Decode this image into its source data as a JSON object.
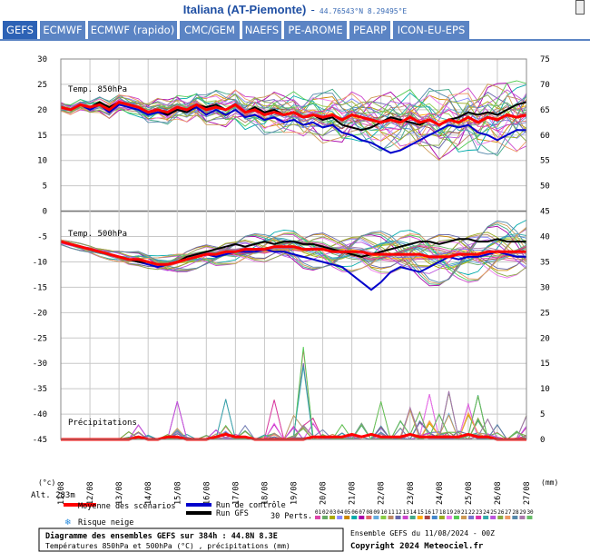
{
  "header": {
    "title": "Italiana (AT-Piemonte)",
    "separator": "-",
    "coords": "44.76543°N 8.29495°E"
  },
  "tabs": [
    {
      "label": "GEFS",
      "active": true
    },
    {
      "label": "ECMWF",
      "active": false
    },
    {
      "label": "ECMWF (rapido)",
      "active": false
    },
    {
      "label": "CMC/GEM",
      "active": false
    },
    {
      "label": "NAEFS",
      "active": false
    },
    {
      "label": "PE-AROME",
      "active": false
    },
    {
      "label": "PEARP",
      "active": false
    },
    {
      "label": "ICON-EU-EPS",
      "active": false
    }
  ],
  "colors": {
    "tab_bg": "#5b84c4",
    "tab_active": "#2d62b5",
    "mean": "#ff0000",
    "control": "#0000cc",
    "gfs": "#000000"
  },
  "chart_data": {
    "type": "line",
    "panel_labels": {
      "t850": "Temp. 850hPa",
      "t500": "Temp. 500hPa",
      "precip": "Précipitations"
    },
    "left_ticks": [
      30,
      25,
      20,
      15,
      10,
      5,
      0,
      -5,
      -10,
      -15,
      -20,
      -25,
      -30,
      -35,
      -40,
      -45
    ],
    "right_ticks": [
      75,
      70,
      65,
      60,
      55,
      50,
      45,
      40,
      35,
      30,
      25,
      20,
      15,
      10,
      5,
      0
    ],
    "left_unit": "(°c)",
    "right_unit": "(mm)",
    "altitude_label": "Alt. 283m",
    "x_labels": [
      "11/08",
      "12/08",
      "13/08",
      "14/08",
      "15/08",
      "16/08",
      "17/08",
      "18/08",
      "19/08",
      "20/08",
      "21/08",
      "22/08",
      "23/08",
      "24/08",
      "25/08",
      "26/08",
      "27/08"
    ],
    "grid": true,
    "members_count": 30,
    "t850_mean": [
      20.5,
      20,
      21,
      20.5,
      21,
      20,
      21.5,
      21,
      20.5,
      19.5,
      20,
      19.5,
      20.5,
      20,
      21,
      20,
      20.5,
      20,
      21,
      19.5,
      20,
      19,
      19.5,
      19,
      19.5,
      18.5,
      19,
      18.5,
      19,
      18,
      19,
      18.5,
      18,
      17.5,
      18,
      17.5,
      18.5,
      17.5,
      18,
      17,
      18,
      17.5,
      18.5,
      17.5,
      18.5,
      18,
      19,
      18.5,
      19
    ],
    "t850_control": [
      20.5,
      20,
      21,
      20,
      21,
      19.5,
      21,
      20.5,
      20,
      19,
      19.5,
      19,
      20,
      19.5,
      20.5,
      19,
      20,
      19,
      20,
      18.5,
      19,
      18,
      18.5,
      17.5,
      18,
      17,
      17.5,
      16.5,
      17,
      15.5,
      15,
      14,
      13.5,
      12.5,
      11.5,
      12,
      13,
      14,
      15,
      16,
      17,
      16.5,
      17,
      15.5,
      15,
      14,
      15,
      16,
      16
    ],
    "t850_gfs": [
      20.5,
      20,
      21,
      20.5,
      21.5,
      20.5,
      21.5,
      21,
      20.5,
      19.5,
      20,
      19,
      20,
      19.5,
      21,
      20.5,
      21,
      20,
      21,
      19.5,
      20.5,
      19.5,
      20,
      19,
      19.5,
      18.5,
      19,
      18,
      18.5,
      17,
      16.5,
      16,
      16.5,
      17.5,
      18.5,
      18,
      17.5,
      17,
      18,
      17,
      18,
      18.5,
      19.5,
      19,
      19.5,
      19,
      20,
      21,
      21.5
    ],
    "t500_mean": [
      -6,
      -6.5,
      -7,
      -7.5,
      -8,
      -8.5,
      -9,
      -9.5,
      -9.5,
      -10,
      -10.5,
      -10.5,
      -10,
      -9.5,
      -9,
      -8.5,
      -8.5,
      -8,
      -8,
      -7.5,
      -7.5,
      -7.5,
      -7,
      -7,
      -7,
      -7.5,
      -7.5,
      -7.5,
      -8,
      -8,
      -8,
      -8,
      -8.5,
      -8.5,
      -8.5,
      -8.5,
      -8.5,
      -8.5,
      -9,
      -9,
      -9,
      -8.5,
      -8.5,
      -8.5,
      -8,
      -8,
      -8,
      -8,
      -8
    ],
    "t500_control": [
      -6,
      -6.5,
      -7,
      -7.5,
      -8,
      -8.5,
      -9,
      -9.5,
      -10,
      -10.5,
      -11,
      -10.5,
      -10,
      -9.5,
      -9,
      -8.5,
      -9,
      -8.5,
      -8,
      -8,
      -8,
      -7.5,
      -8,
      -8,
      -8.5,
      -9,
      -9.5,
      -10,
      -10.5,
      -11,
      -12.5,
      -14,
      -15.5,
      -14,
      -12,
      -11,
      -11.5,
      -12,
      -11,
      -10,
      -9,
      -9.5,
      -9,
      -9,
      -8.5,
      -8,
      -8.5,
      -9,
      -9
    ],
    "t500_gfs": [
      -6,
      -6.5,
      -7,
      -7.5,
      -8,
      -8.5,
      -9,
      -9.5,
      -10,
      -10,
      -10.5,
      -10.5,
      -10,
      -9,
      -8.5,
      -8,
      -7.5,
      -7,
      -6.5,
      -7,
      -6.5,
      -6,
      -6.5,
      -6,
      -6,
      -6.5,
      -6.5,
      -7,
      -7.5,
      -8,
      -8.5,
      -9,
      -8.5,
      -8,
      -7.5,
      -7,
      -6.5,
      -6,
      -6,
      -6.5,
      -6,
      -5.5,
      -5.5,
      -6,
      -6,
      -5.5,
      -6,
      -6,
      -6
    ],
    "precip_mean": [
      0,
      0,
      0,
      0,
      0,
      0,
      0,
      0,
      0.5,
      0,
      0,
      0.5,
      0.5,
      0,
      0,
      0,
      0.5,
      1,
      0.5,
      0.5,
      0,
      0,
      0,
      0,
      0,
      0,
      0.5,
      0.5,
      0.5,
      0.5,
      1,
      0.5,
      1,
      0.5,
      0.5,
      0.5,
      1,
      0.5,
      0.5,
      0.5,
      0.5,
      0.5,
      1,
      0.5,
      0.5,
      0,
      0,
      0,
      0
    ],
    "precip_peaks": [
      0,
      0,
      0,
      0,
      0,
      0,
      0,
      1.5,
      3,
      1,
      0,
      1,
      7.5,
      1,
      0,
      1,
      2,
      8,
      1,
      3,
      0,
      1,
      8,
      0,
      5,
      22,
      5,
      2,
      1,
      3,
      1,
      4,
      0,
      7.5,
      0,
      4,
      8,
      6,
      9,
      5,
      10,
      2,
      8,
      9,
      4,
      3,
      0,
      2,
      5
    ]
  },
  "legend": {
    "mean": "Moyenne des scénarios",
    "control": "Run de contrôle",
    "gfs": "Run GFS",
    "snow": "Risque neige",
    "perts": "30 Perts.",
    "pert_numbers": [
      "01",
      "02",
      "03",
      "04",
      "05",
      "06",
      "07",
      "08",
      "09",
      "10",
      "11",
      "12",
      "13",
      "14",
      "15",
      "16",
      "17",
      "18",
      "19",
      "20",
      "21",
      "22",
      "23",
      "24",
      "25",
      "26",
      "27",
      "28",
      "29",
      "30"
    ]
  },
  "footer": {
    "line1": "Diagramme des ensembles GEFS sur 384h : 44.8N 8.3E",
    "line2": "Températures 850hPa et 500hPa (°C) , précipitations (mm)",
    "run": "Ensemble GEFS du 11/08/2024 - 00Z",
    "copyright": "Copyright 2024 Meteociel.fr"
  }
}
